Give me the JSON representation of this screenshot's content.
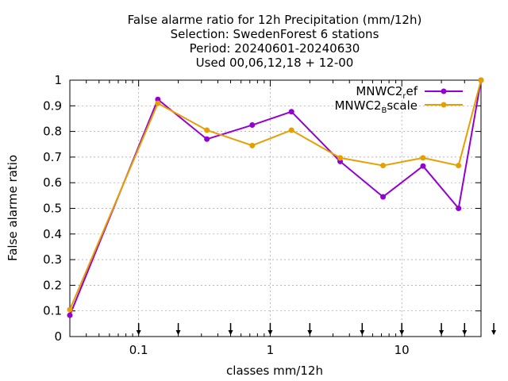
{
  "chart_data": {
    "type": "line",
    "title_lines": [
      "False alarme ratio  for 12h Precipitation (mm/12h)",
      "Selection: SwedenForest      6 stations",
      "Period: 20240601-20240630",
      "Used 00,06,12,18 + 12-00"
    ],
    "xlabel": "classes mm/12h",
    "ylabel": "False alarme ratio",
    "x_scale": "log",
    "xlim": [
      0.03,
      40
    ],
    "ylim": [
      0,
      1
    ],
    "x_ticks": [
      {
        "value": 0.1,
        "label": "0.1"
      },
      {
        "value": 1,
        "label": "1"
      },
      {
        "value": 10,
        "label": "10"
      }
    ],
    "y_ticks": [
      {
        "value": 0,
        "label": "0"
      },
      {
        "value": 0.1,
        "label": "0.1"
      },
      {
        "value": 0.2,
        "label": "0.2"
      },
      {
        "value": 0.3,
        "label": "0.3"
      },
      {
        "value": 0.4,
        "label": "0.4"
      },
      {
        "value": 0.5,
        "label": "0.5"
      },
      {
        "value": 0.6,
        "label": "0.6"
      },
      {
        "value": 0.7,
        "label": "0.7"
      },
      {
        "value": 0.8,
        "label": "0.8"
      },
      {
        "value": 0.9,
        "label": "0.9"
      },
      {
        "value": 1,
        "label": "1"
      }
    ],
    "class_thresholds": [
      0.1,
      0.2,
      0.5,
      1,
      2,
      5,
      10,
      20,
      30,
      50
    ],
    "grid": true,
    "legend_position": "top-right",
    "series": [
      {
        "name_main": "MNWC2",
        "name_sub": "r",
        "name_rest": "ef",
        "color": "#9400d3",
        "x": [
          0.03,
          0.14,
          0.33,
          0.73,
          1.45,
          3.4,
          7.2,
          14.5,
          27,
          40
        ],
        "y": [
          0.083,
          0.925,
          0.77,
          0.825,
          0.877,
          0.683,
          0.545,
          0.665,
          0.5,
          1.0
        ]
      },
      {
        "name_main": "MNWC2",
        "name_sub": "B",
        "name_rest": "scale",
        "color": "#e69f00",
        "x": [
          0.03,
          0.14,
          0.33,
          0.73,
          1.45,
          3.4,
          7.2,
          14.5,
          27,
          40
        ],
        "y": [
          0.105,
          0.91,
          0.805,
          0.745,
          0.805,
          0.697,
          0.667,
          0.697,
          0.667,
          1.0
        ]
      }
    ]
  }
}
